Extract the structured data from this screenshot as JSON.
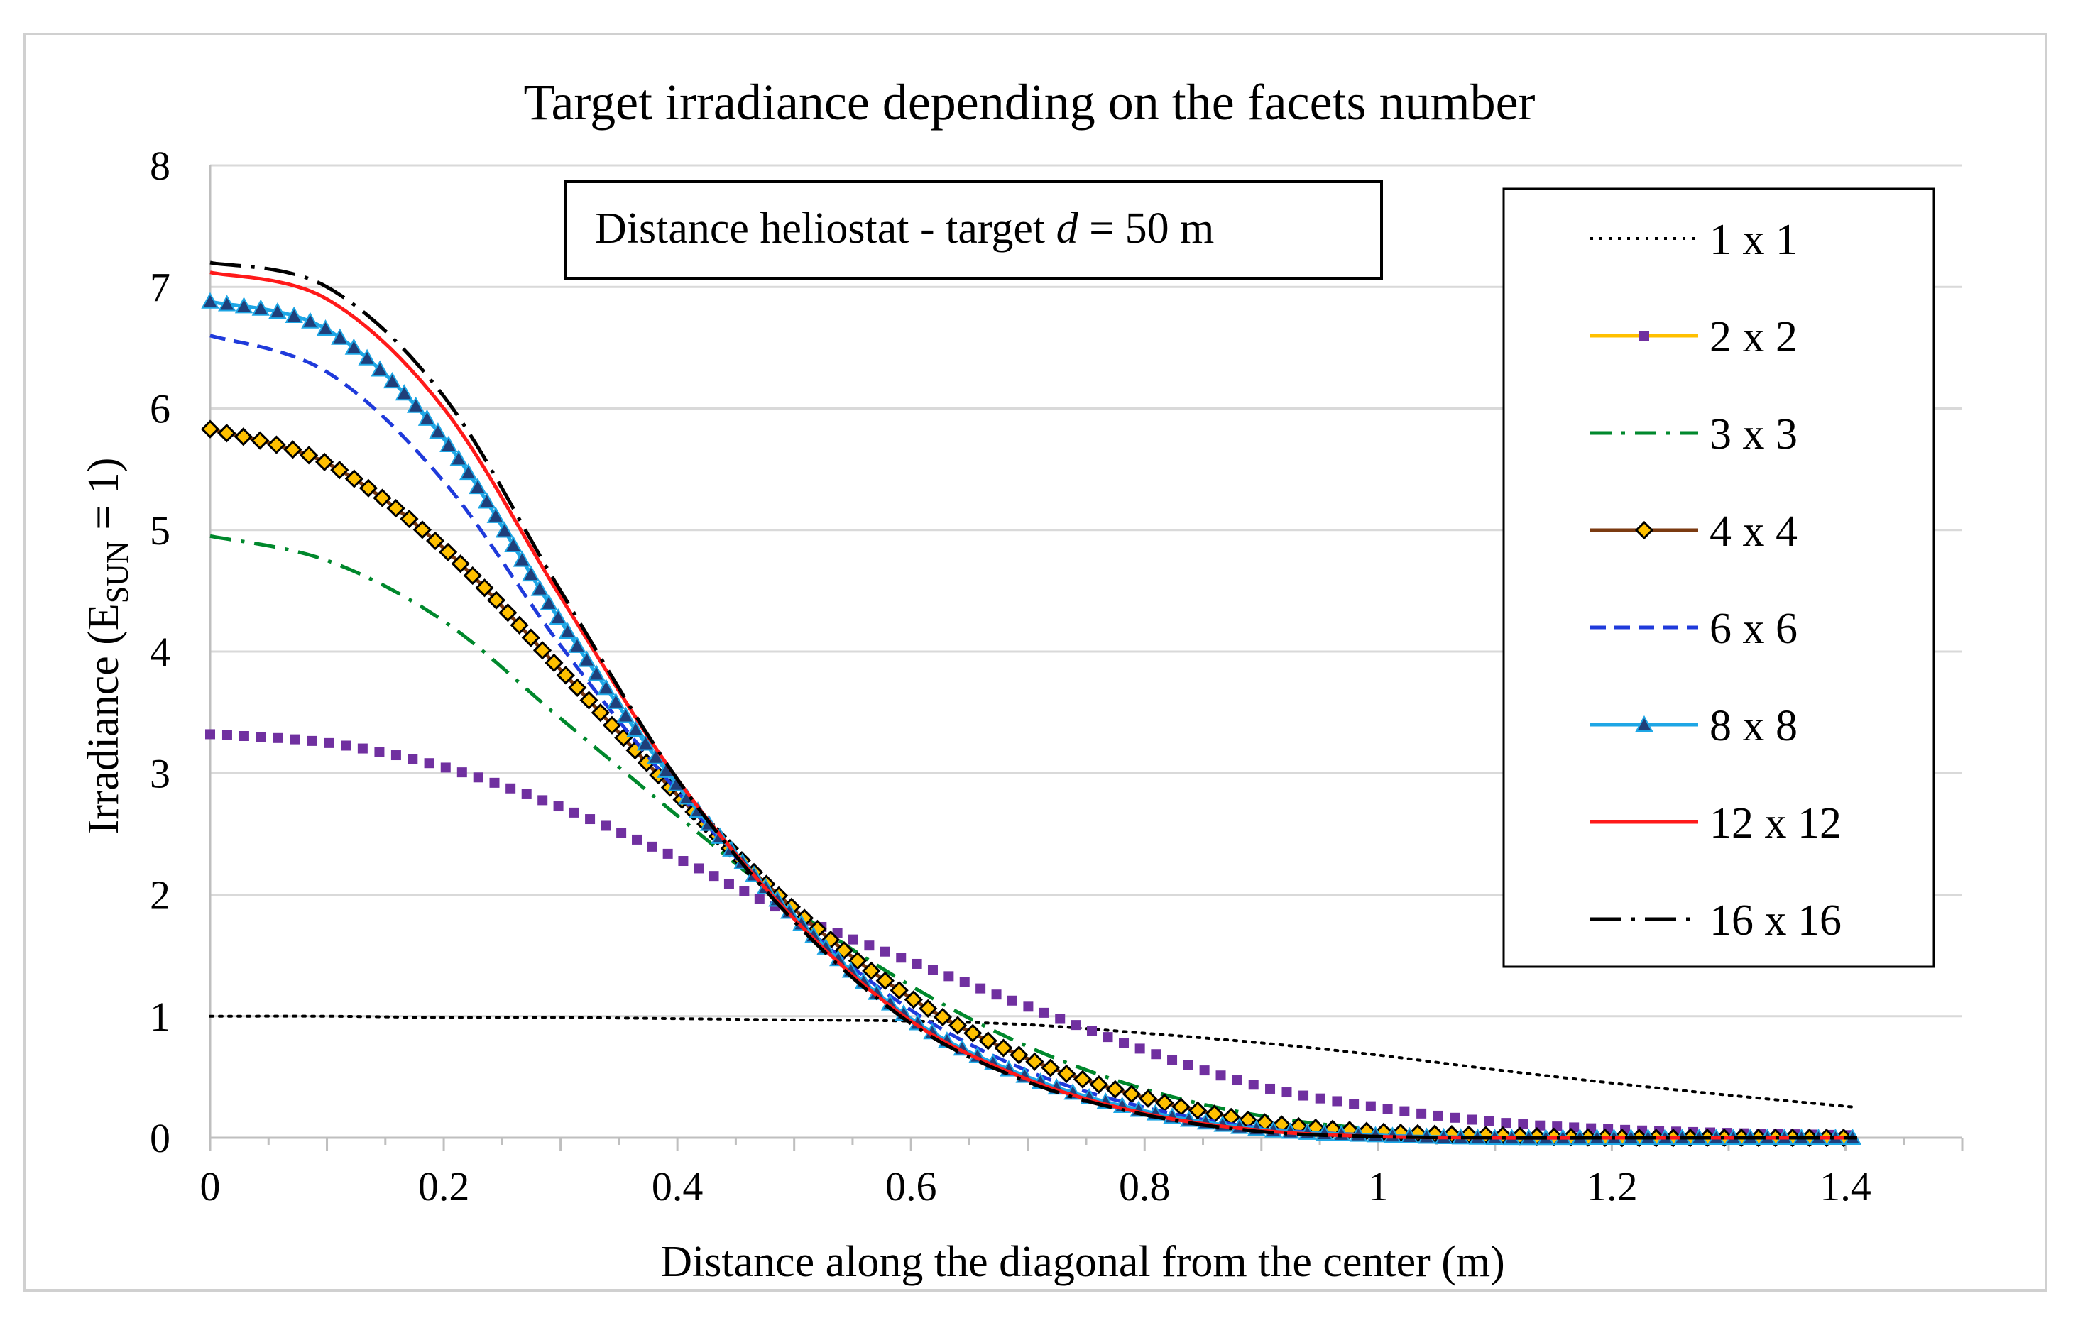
{
  "chart_data": {
    "type": "line",
    "title": "Target irradiance  depending on the facets number",
    "xlabel": "Distance along the diagonal  from the center (m)",
    "ylabel": {
      "prefix": "Irradiance (E",
      "subscript": "SUN",
      "suffix": " = 1)"
    },
    "xlim": [
      0,
      1.5
    ],
    "ylim": [
      0,
      8
    ],
    "xticks": [
      "0",
      "0.2",
      "0.4",
      "0.6",
      "0.8",
      "1",
      "1.2",
      "1.4"
    ],
    "xtick_values": [
      0,
      0.2,
      0.4,
      0.6,
      0.8,
      1.0,
      1.2,
      1.4
    ],
    "yticks": [
      "0",
      "1",
      "2",
      "3",
      "4",
      "5",
      "6",
      "7",
      "8"
    ],
    "ytick_values": [
      0,
      1,
      2,
      3,
      4,
      5,
      6,
      7,
      8
    ],
    "grid": "horizontal",
    "legend_position": "right",
    "annotation": {
      "prefix": "Distance heliostat - target ",
      "italic": "d",
      "suffix": " = 50 m"
    },
    "x": [
      0.0,
      0.1,
      0.2,
      0.3,
      0.4,
      0.5,
      0.6,
      0.7,
      0.8,
      0.9,
      1.0,
      1.1,
      1.2,
      1.3,
      1.41
    ],
    "series": [
      {
        "name": "1 x 1",
        "color": "#000000",
        "style": "dotted",
        "marker": "none",
        "values": [
          1.0,
          1.0,
          0.99,
          0.99,
          0.98,
          0.97,
          0.96,
          0.93,
          0.86,
          0.78,
          0.68,
          0.56,
          0.45,
          0.35,
          0.25
        ]
      },
      {
        "name": "2 x 2",
        "color": "#7030a0",
        "style": "squares",
        "marker": "square",
        "values": [
          3.32,
          3.25,
          3.05,
          2.72,
          2.3,
          1.83,
          1.45,
          1.08,
          0.72,
          0.42,
          0.25,
          0.13,
          0.07,
          0.04,
          0.02
        ]
      },
      {
        "name": "3 x 3",
        "color": "#00882c",
        "style": "dashdot",
        "marker": "none",
        "values": [
          4.95,
          4.75,
          4.25,
          3.45,
          2.65,
          1.88,
          1.25,
          0.75,
          0.4,
          0.18,
          0.07,
          0.03,
          0.01,
          0.0,
          0.0
        ]
      },
      {
        "name": "4 x 4",
        "color": "#7b3a10",
        "style": "solid-diamond",
        "marker": "diamond",
        "values": [
          5.83,
          5.55,
          4.85,
          3.85,
          2.82,
          1.88,
          1.15,
          0.65,
          0.33,
          0.13,
          0.05,
          0.02,
          0.0,
          0.0,
          0.0
        ]
      },
      {
        "name": "6 x 6",
        "color": "#1f3adb",
        "style": "dashed",
        "marker": "none",
        "values": [
          6.6,
          6.3,
          5.4,
          4.05,
          2.85,
          1.82,
          1.05,
          0.55,
          0.25,
          0.08,
          0.02,
          0.0,
          0.0,
          0.0,
          0.0
        ]
      },
      {
        "name": "8 x 8",
        "color": "#1ea6e5",
        "style": "solid-triangle",
        "marker": "triangle",
        "values": [
          6.88,
          6.65,
          5.75,
          4.25,
          2.9,
          1.82,
          0.98,
          0.5,
          0.22,
          0.07,
          0.02,
          0.0,
          0.0,
          0.0,
          0.0
        ]
      },
      {
        "name": "12 x 12",
        "color": "#ff1a1a",
        "style": "solid",
        "marker": "none",
        "values": [
          7.12,
          6.9,
          6.0,
          4.45,
          2.95,
          1.8,
          0.96,
          0.48,
          0.2,
          0.06,
          0.01,
          0.0,
          0.0,
          0.0,
          0.0
        ]
      },
      {
        "name": "16 x 16",
        "color": "#000000",
        "style": "longdash-dot",
        "marker": "none",
        "values": [
          7.2,
          7.0,
          6.1,
          4.5,
          2.95,
          1.78,
          0.94,
          0.46,
          0.19,
          0.05,
          0.01,
          0.0,
          0.0,
          0.0,
          0.0
        ]
      }
    ]
  }
}
